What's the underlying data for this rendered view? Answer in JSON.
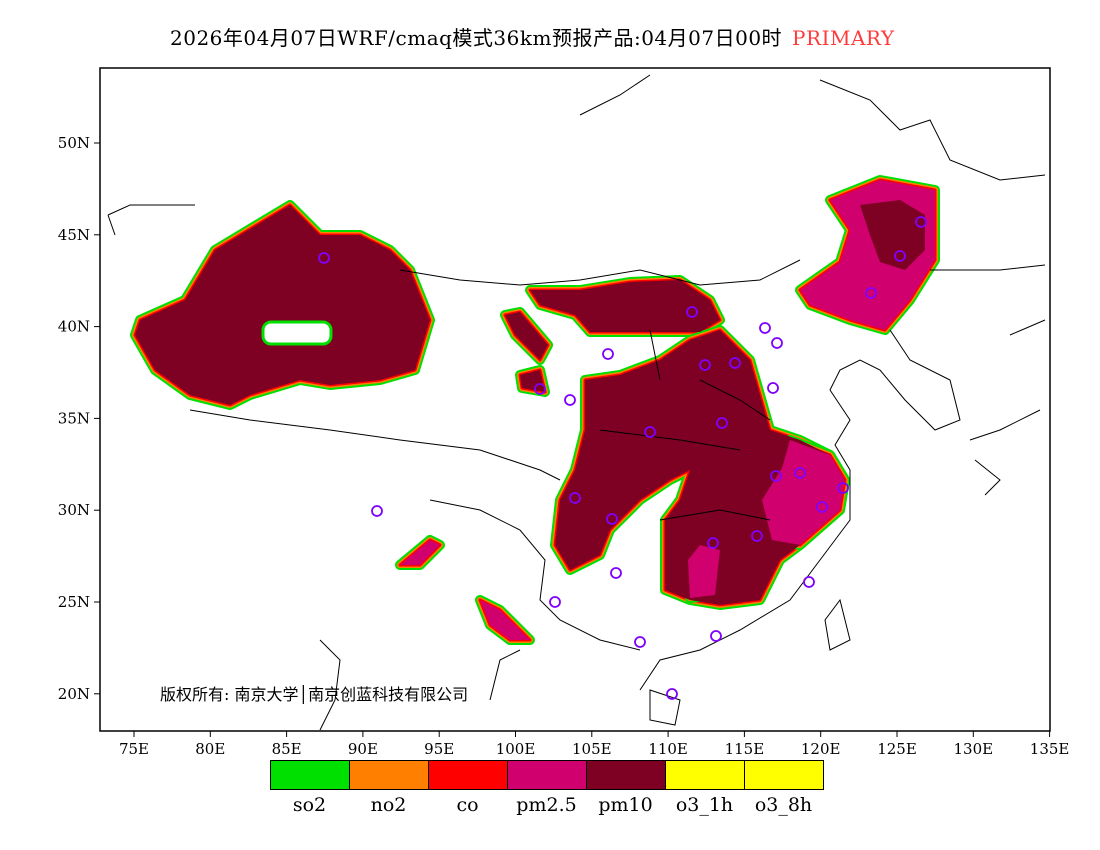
{
  "title": {
    "main": "2026年04月07日WRF/cmaq模式36km预报产品:04月07日00时",
    "product": "PRIMARY"
  },
  "axes": {
    "lon_ticks": [
      "75E",
      "80E",
      "85E",
      "90E",
      "95E",
      "100E",
      "105E",
      "110E",
      "115E",
      "120E",
      "125E",
      "130E",
      "135E"
    ],
    "lat_ticks": [
      "50N",
      "45N",
      "40N",
      "35N",
      "30N",
      "25N",
      "20N"
    ]
  },
  "copyright": "版权所有: 南京大学│南京创蓝科技有限公司",
  "legend": [
    {
      "label": "so2",
      "color": "#00e000"
    },
    {
      "label": "no2",
      "color": "#ff8000"
    },
    {
      "label": "co",
      "color": "#ff0000"
    },
    {
      "label": "pm2.5",
      "color": "#d0006e"
    },
    {
      "label": "pm10",
      "color": "#7e0023"
    },
    {
      "label": "o3_1h",
      "color": "#ffff00"
    },
    {
      "label": "o3_8h",
      "color": "#ffff00"
    }
  ],
  "colors": {
    "station": "#8000ff",
    "pm10": "#7e0023",
    "pm25": "#d0006e"
  }
}
